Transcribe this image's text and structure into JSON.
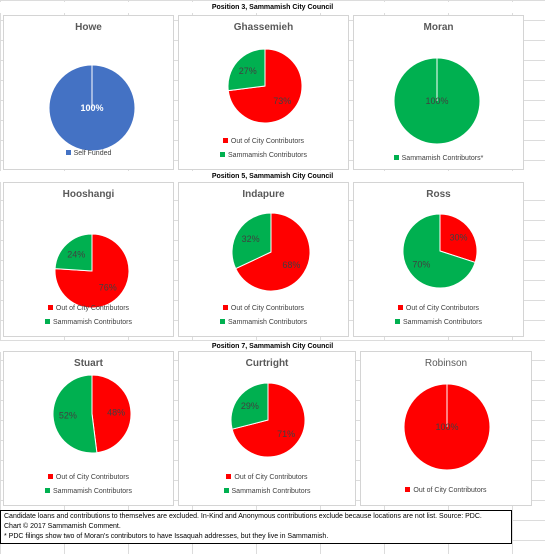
{
  "sections": [
    {
      "title": "Position 3, Sammamish City Council"
    },
    {
      "title": "Position 5, Sammamish City Council"
    },
    {
      "title": "Position 7, Sammamish City Council"
    }
  ],
  "colors": {
    "self_funded": "#4472C4",
    "out_of_city": "#FF0000",
    "sammamish": "#00B050"
  },
  "chart_data": [
    {
      "type": "pie",
      "title": "Howe",
      "slices": [
        {
          "label": "Self Funded",
          "value": 100,
          "pct_label": "100%",
          "color": "#4472C4"
        }
      ],
      "legend": [
        "Self Funded"
      ]
    },
    {
      "type": "pie",
      "title": "Ghassemieh",
      "slices": [
        {
          "label": "Out of City Contributors",
          "value": 73,
          "pct_label": "73%",
          "color": "#FF0000"
        },
        {
          "label": "Sammamish Contributors",
          "value": 27,
          "pct_label": "27%",
          "color": "#00B050"
        }
      ],
      "legend": [
        "Out of City Contributors",
        "Sammamish Contributors"
      ]
    },
    {
      "type": "pie",
      "title": "Moran",
      "slices": [
        {
          "label": "Sammamish Contributors*",
          "value": 100,
          "pct_label": "100%",
          "color": "#00B050"
        }
      ],
      "legend": [
        "Sammamish Contributors*"
      ]
    },
    {
      "type": "pie",
      "title": "Hooshangi",
      "slices": [
        {
          "label": "Out of City Contributors",
          "value": 76,
          "pct_label": "76%",
          "color": "#FF0000"
        },
        {
          "label": "Sammamish Contributors",
          "value": 24,
          "pct_label": "24%",
          "color": "#00B050"
        }
      ],
      "legend": [
        "Out of City Contributors",
        "Sammamish Contributors"
      ]
    },
    {
      "type": "pie",
      "title": "Indapure",
      "slices": [
        {
          "label": "Out of City Contributors",
          "value": 68,
          "pct_label": "68%",
          "color": "#FF0000"
        },
        {
          "label": "Sammamish Contributors",
          "value": 32,
          "pct_label": "32%",
          "color": "#00B050"
        }
      ],
      "legend": [
        "Out of City Contributors",
        "Sammamish Contributors"
      ]
    },
    {
      "type": "pie",
      "title": "Ross",
      "slices": [
        {
          "label": "Out of City Contributors",
          "value": 30,
          "pct_label": "30%",
          "color": "#FF0000"
        },
        {
          "label": "Sammamish Contributors",
          "value": 70,
          "pct_label": "70%",
          "color": "#00B050"
        }
      ],
      "legend": [
        "Out of City Contributors",
        "Sammamish Contributors"
      ]
    },
    {
      "type": "pie",
      "title": "Stuart",
      "slices": [
        {
          "label": "Out of City Contributors",
          "value": 48,
          "pct_label": "48%",
          "color": "#FF0000"
        },
        {
          "label": "Sammamish Contributors",
          "value": 52,
          "pct_label": "52%",
          "color": "#00B050"
        }
      ],
      "legend": [
        "Out of City Contributors",
        "Sammamish Contributors"
      ]
    },
    {
      "type": "pie",
      "title": "Curtright",
      "slices": [
        {
          "label": "Out of City Contributors",
          "value": 71,
          "pct_label": "71%",
          "color": "#FF0000"
        },
        {
          "label": "Sammamish Contributors",
          "value": 29,
          "pct_label": "29%",
          "color": "#00B050"
        }
      ],
      "legend": [
        "Out of City Contributors",
        "Sammamish Contributors"
      ]
    },
    {
      "type": "pie",
      "title": "Robinson",
      "slices": [
        {
          "label": "Out of City Contributors",
          "value": 100,
          "pct_label": "100%",
          "color": "#FF0000"
        }
      ],
      "legend": [
        "Out of City Contributors"
      ]
    }
  ],
  "footnote": {
    "line1": "Candidate loans and contributions to themselves are excluded. In-Kind and Anonymous contributions exclude because locations are not list. Source: PDC.",
    "line2": "Chart © 2017 Sammamish Comment.",
    "line3": "* PDC filings show two of Moran's contributors to have Issaquah addresses, but they live in Sammamish."
  }
}
